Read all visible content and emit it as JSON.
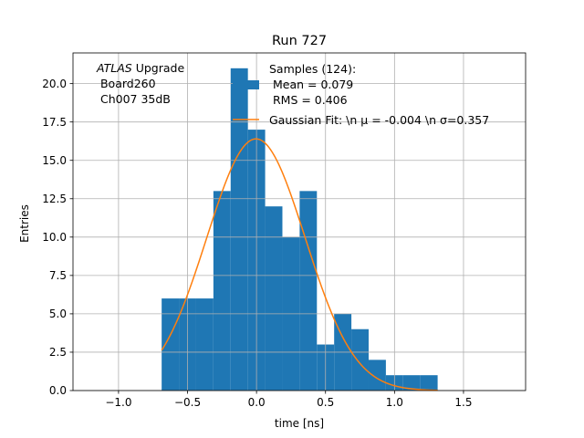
{
  "chart_data": {
    "type": "bar",
    "title": "Run 727",
    "xlabel": "time [ns]",
    "ylabel": "Entries",
    "xlim": [
      -1.33,
      1.95
    ],
    "ylim": [
      0,
      22
    ],
    "grid": true,
    "xticks": [
      -1.0,
      -0.5,
      0.0,
      0.5,
      1.0,
      1.5
    ],
    "xtick_labels": [
      "−1.0",
      "−0.5",
      "0.0",
      "0.5",
      "1.0",
      "1.5"
    ],
    "yticks": [
      0,
      2.5,
      5,
      7.5,
      10,
      12.5,
      15,
      17.5,
      20
    ],
    "ytick_labels": [
      "0.0",
      "2.5",
      "5.0",
      "7.5",
      "10.0",
      "12.5",
      "15.0",
      "17.5",
      "20.0"
    ],
    "histogram": {
      "color": "#1f77b4",
      "bin_edges": [
        -0.6875,
        -0.5625,
        -0.4375,
        -0.3125,
        -0.1875,
        -0.0625,
        0.0625,
        0.1875,
        0.3125,
        0.4375,
        0.5625,
        0.6875,
        0.8125,
        0.9375,
        1.0625,
        1.1875,
        1.3125
      ],
      "counts": [
        6,
        6,
        6,
        13,
        21,
        17,
        12,
        10,
        13,
        3,
        5,
        4,
        2,
        1,
        1,
        1
      ]
    },
    "fit": {
      "color": "#ff7f0e",
      "amplitude": 16.4,
      "mu": -0.004,
      "sigma": 0.357,
      "x_range": [
        -0.6875,
        1.3125
      ]
    },
    "legend": {
      "location": "top-right",
      "entries": [
        {
          "lines": [
            "Samples (124):",
            " Mean = 0.079",
            " RMS = 0.406"
          ],
          "marker": "patch",
          "color": "#1f77b4"
        },
        {
          "lines": [
            "Gaussian Fit: \\n μ = -0.004 \\n σ=0.357"
          ],
          "marker": "line",
          "color": "#ff7f0e"
        }
      ]
    },
    "annotation": {
      "italic_word": "ATLAS",
      "line1_rest": " Upgrade",
      "line2": " Board260",
      "line3": " Ch007 35dB"
    }
  }
}
